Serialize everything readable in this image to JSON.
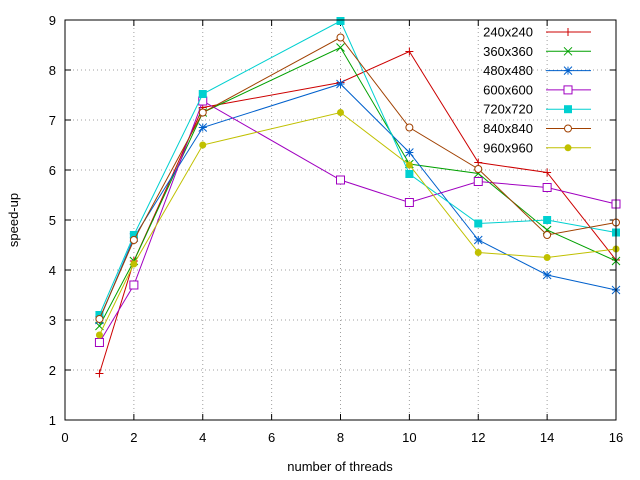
{
  "chart_data": {
    "type": "line",
    "title": "",
    "xlabel": "number of threads",
    "ylabel": "speed-up",
    "xlim": [
      0,
      16
    ],
    "ylim": [
      1,
      9
    ],
    "xticks": [
      0,
      2,
      4,
      6,
      8,
      10,
      12,
      14,
      16
    ],
    "yticks": [
      1,
      2,
      3,
      4,
      5,
      6,
      7,
      8,
      9
    ],
    "grid": true,
    "legend_position": "top-right",
    "x": [
      1,
      2,
      4,
      8,
      10,
      12,
      14,
      16
    ],
    "series": [
      {
        "name": "240x240",
        "color": "#cc0000",
        "marker": "plus",
        "values": [
          1.93,
          4.18,
          7.25,
          7.75,
          8.37,
          6.15,
          5.95,
          4.2
        ]
      },
      {
        "name": "360x360",
        "color": "#00a000",
        "marker": "cross",
        "values": [
          2.88,
          4.18,
          7.15,
          8.45,
          6.12,
          5.93,
          4.8,
          4.18
        ]
      },
      {
        "name": "480x480",
        "color": "#0060cc",
        "marker": "star",
        "values": [
          3.0,
          4.65,
          6.85,
          7.72,
          6.35,
          4.6,
          3.9,
          3.6
        ]
      },
      {
        "name": "600x600",
        "color": "#a000c0",
        "marker": "square-open",
        "values": [
          2.55,
          3.7,
          7.38,
          5.8,
          5.35,
          5.77,
          5.65,
          5.32
        ]
      },
      {
        "name": "720x720",
        "color": "#00d0d0",
        "marker": "square-filled",
        "values": [
          3.1,
          4.7,
          7.52,
          8.98,
          5.92,
          4.93,
          5.0,
          4.75
        ]
      },
      {
        "name": "840x840",
        "color": "#a04000",
        "marker": "circle-open",
        "values": [
          3.02,
          4.6,
          7.15,
          8.65,
          6.85,
          6.02,
          4.7,
          4.95
        ]
      },
      {
        "name": "960x960",
        "color": "#c0c000",
        "marker": "circle-filled",
        "values": [
          2.7,
          4.12,
          6.5,
          7.15,
          6.1,
          4.35,
          4.25,
          4.42
        ]
      }
    ]
  }
}
